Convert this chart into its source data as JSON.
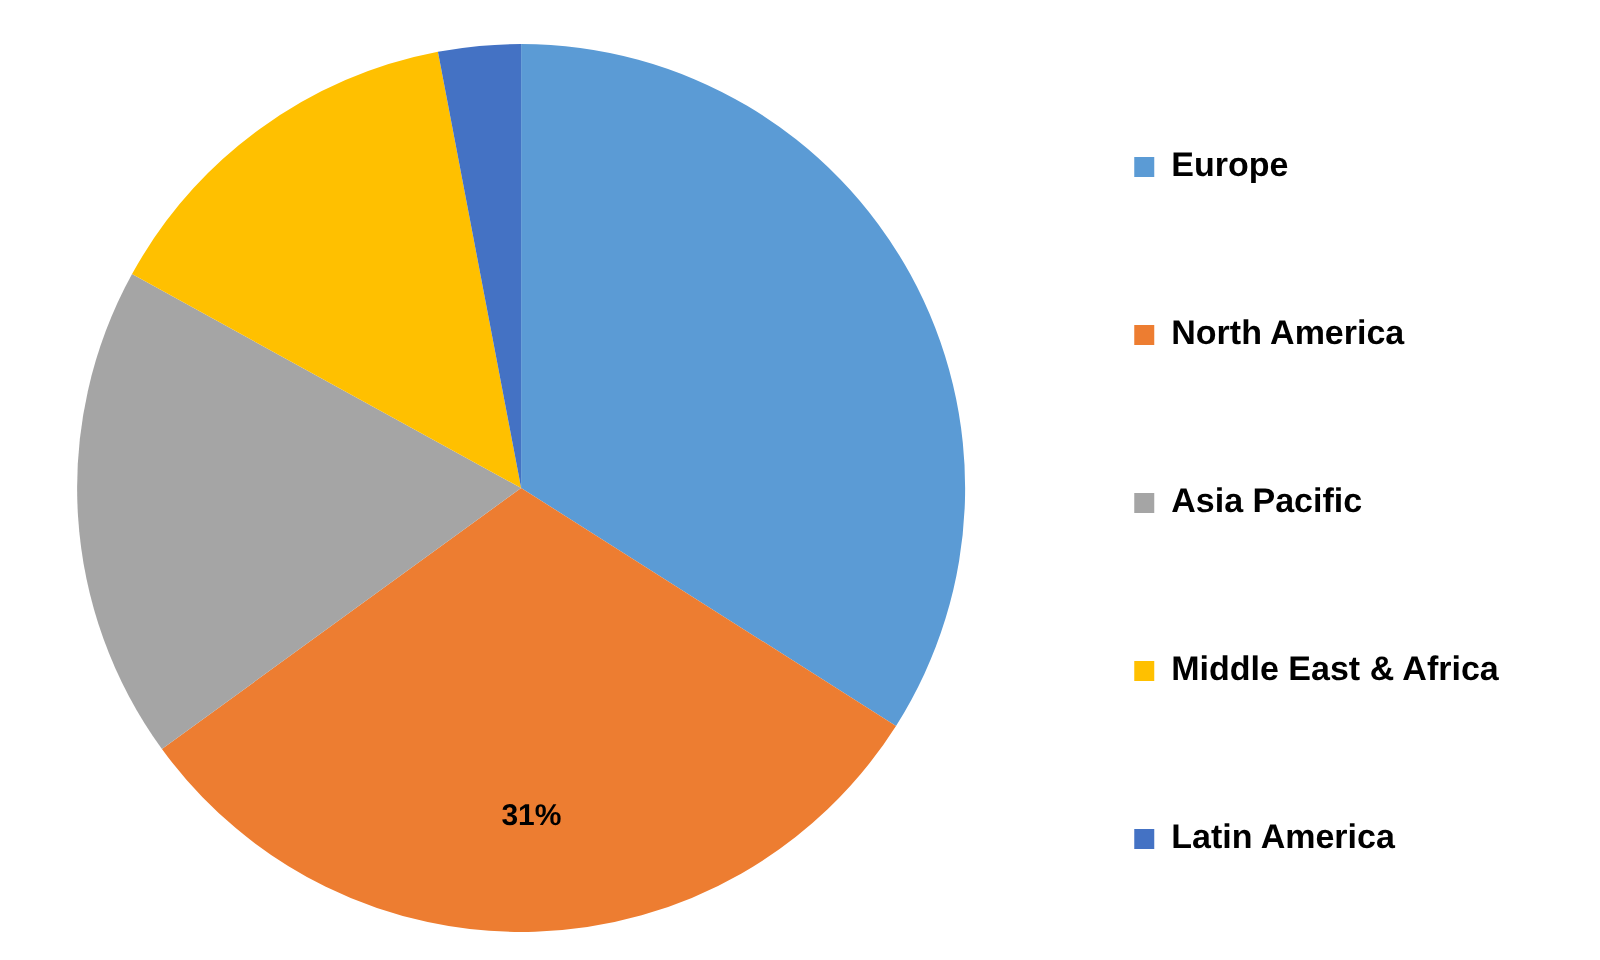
{
  "chart_data": {
    "type": "pie",
    "categories": [
      "Europe",
      "North America",
      "Asia Pacific",
      "Middle East & Africa",
      "Latin America"
    ],
    "values": [
      34,
      31,
      18,
      14,
      3
    ],
    "colors": [
      "#5b9bd5",
      "#ed7d31",
      "#a5a5a5",
      "#ffc000",
      "#4472c4"
    ],
    "value_labels": [
      null,
      "31%",
      null,
      null,
      null
    ],
    "legend": "right"
  }
}
